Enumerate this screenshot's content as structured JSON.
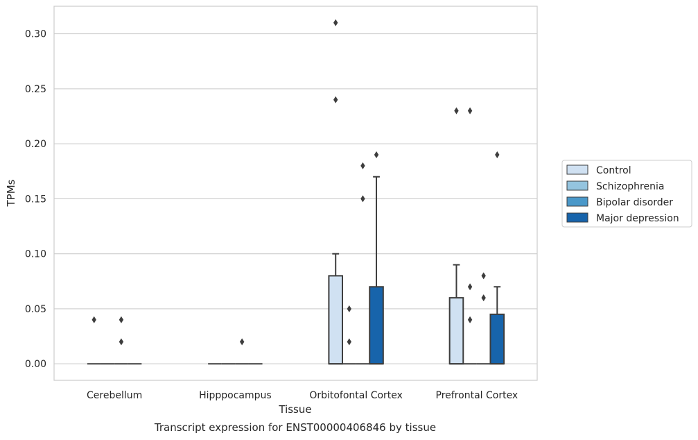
{
  "chart_data": {
    "type": "box",
    "caption": "Transcript expression for ENST00000406846 by tissue",
    "xlabel": "Tissue",
    "ylabel": "TPMs",
    "ylim": [
      -0.015,
      0.325
    ],
    "yticks": [
      "0.00",
      "0.05",
      "0.10",
      "0.15",
      "0.20",
      "0.25",
      "0.30"
    ],
    "grid": true,
    "legend_position": "right",
    "categories": [
      "Cerebellum",
      "Hipppocampus",
      "Orbitofontal Cortex",
      "Prefrontal Cortex"
    ],
    "series": [
      {
        "name": "Control",
        "color": "#d0e1f2",
        "boxes": [
          {
            "q1": 0,
            "median": 0,
            "q3": 0,
            "whisker_low": 0,
            "whisker_high": 0,
            "outliers": [
              0.04
            ]
          },
          {
            "q1": 0,
            "median": 0,
            "q3": 0,
            "whisker_low": 0,
            "whisker_high": 0,
            "outliers": []
          },
          {
            "q1": 0,
            "median": 0,
            "q3": 0.08,
            "whisker_low": 0,
            "whisker_high": 0.1,
            "outliers": [
              0.24,
              0.31
            ]
          },
          {
            "q1": 0,
            "median": 0,
            "q3": 0.06,
            "whisker_low": 0,
            "whisker_high": 0.09,
            "outliers": [
              0.23
            ]
          }
        ]
      },
      {
        "name": "Schizophrenia",
        "color": "#94c4df",
        "boxes": [
          {
            "q1": 0,
            "median": 0,
            "q3": 0,
            "whisker_low": 0,
            "whisker_high": 0,
            "outliers": []
          },
          {
            "q1": 0,
            "median": 0,
            "q3": 0,
            "whisker_low": 0,
            "whisker_high": 0,
            "outliers": []
          },
          {
            "q1": 0,
            "median": 0,
            "q3": 0,
            "whisker_low": 0,
            "whisker_high": 0,
            "outliers": [
              0.02,
              0.05
            ]
          },
          {
            "q1": 0,
            "median": 0,
            "q3": 0,
            "whisker_low": 0,
            "whisker_high": 0,
            "outliers": [
              0.04,
              0.07,
              0.23
            ]
          }
        ]
      },
      {
        "name": "Bipolar disorder",
        "color": "#4a98c9",
        "boxes": [
          {
            "q1": 0,
            "median": 0,
            "q3": 0,
            "whisker_low": 0,
            "whisker_high": 0,
            "outliers": [
              0.02,
              0.04
            ]
          },
          {
            "q1": 0,
            "median": 0,
            "q3": 0,
            "whisker_low": 0,
            "whisker_high": 0,
            "outliers": [
              0.02
            ]
          },
          {
            "q1": 0,
            "median": 0,
            "q3": 0,
            "whisker_low": 0,
            "whisker_high": 0,
            "outliers": [
              0.15,
              0.18
            ]
          },
          {
            "q1": 0,
            "median": 0,
            "q3": 0,
            "whisker_low": 0,
            "whisker_high": 0,
            "outliers": [
              0.06,
              0.08
            ]
          }
        ]
      },
      {
        "name": "Major depression",
        "color": "#1764ab",
        "boxes": [
          {
            "q1": 0,
            "median": 0,
            "q3": 0,
            "whisker_low": 0,
            "whisker_high": 0,
            "outliers": []
          },
          {
            "q1": 0,
            "median": 0,
            "q3": 0,
            "whisker_low": 0,
            "whisker_high": 0,
            "outliers": []
          },
          {
            "q1": 0,
            "median": 0,
            "q3": 0.07,
            "whisker_low": 0,
            "whisker_high": 0.17,
            "outliers": [
              0.19
            ]
          },
          {
            "q1": 0,
            "median": 0,
            "q3": 0.045,
            "whisker_low": 0,
            "whisker_high": 0.07,
            "outliers": [
              0.19
            ]
          }
        ]
      }
    ]
  }
}
